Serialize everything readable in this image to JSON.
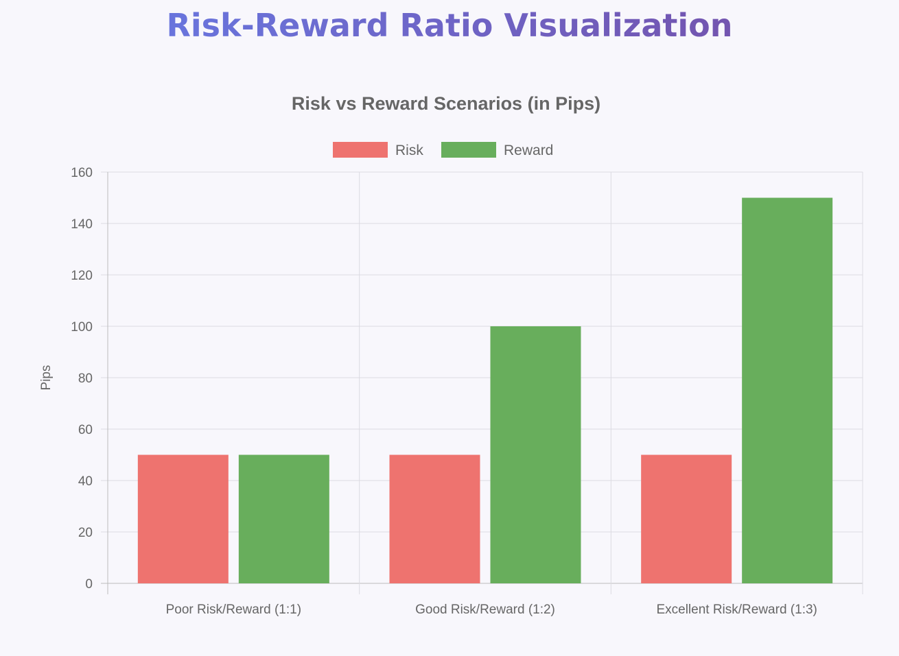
{
  "page_title": "Risk-Reward Ratio Visualization",
  "chart_data": {
    "type": "bar",
    "title": "Risk vs Reward Scenarios (in Pips)",
    "categories": [
      "Poor Risk/Reward (1:1)",
      "Good Risk/Reward (1:2)",
      "Excellent Risk/Reward (1:3)"
    ],
    "series": [
      {
        "name": "Risk",
        "values": [
          50,
          50,
          50
        ],
        "color": "#ee736f"
      },
      {
        "name": "Reward",
        "values": [
          50,
          100,
          150
        ],
        "color": "#68ae5c"
      }
    ],
    "xlabel": "",
    "ylabel": "Pips",
    "ylim": [
      0,
      160
    ],
    "yticks": [
      0,
      20,
      40,
      60,
      80,
      100,
      120,
      140,
      160
    ],
    "grid": true,
    "legend": "top-center"
  }
}
